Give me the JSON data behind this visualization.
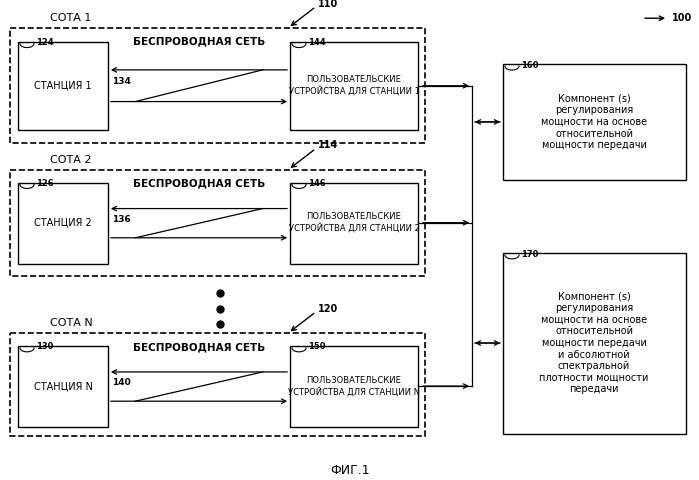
{
  "fig_label": "ФИГ.1",
  "ref_100": "100",
  "ref_110": "110",
  "ref_114": "114",
  "ref_120": "120",
  "cell1_label": "СОТА 1",
  "cell2_label": "СОТА 2",
  "celln_label": "СОТА N",
  "wireless_label": "БЕСПРОВОДНАЯ СЕТЬ",
  "station1_label": "СТАНЦИЯ 1",
  "station2_label": "СТАНЦИЯ 2",
  "stationn_label": "СТАНЦИЯ N",
  "ue1_label": "ПОЛЬЗОВАТЕЛЬСКИЕ\nУСТРОЙСТВА ДЛЯ СТАНЦИИ 1",
  "ue2_label": "ПОЛЬЗОВАТЕЛЬСКИЕ\nУСТРОЙСТВА ДЛЯ СТАНЦИИ 2",
  "uen_label": "ПОЛЬЗОВАТЕЛЬСКИЕ\nУСТРОЙСТВА ДЛЯ СТАНЦИИ N",
  "ref_124": "124",
  "ref_126": "126",
  "ref_130": "130",
  "ref_134": "134",
  "ref_136": "136",
  "ref_140": "140",
  "ref_144": "144",
  "ref_146": "146",
  "ref_150": "150",
  "comp160_label": "Компонент (s)\nрегулирования\nмощности на основе\nотносительной\nмощности передачи",
  "comp170_label": "Компонент (s)\nрегулирования\nмощности на основе\nотносительной\nмощности передачи\nи абсолютной\nспектральной\nплотности мощности\nпередачи",
  "ref_160": "160",
  "ref_170": "170",
  "bg_color": "#ffffff"
}
